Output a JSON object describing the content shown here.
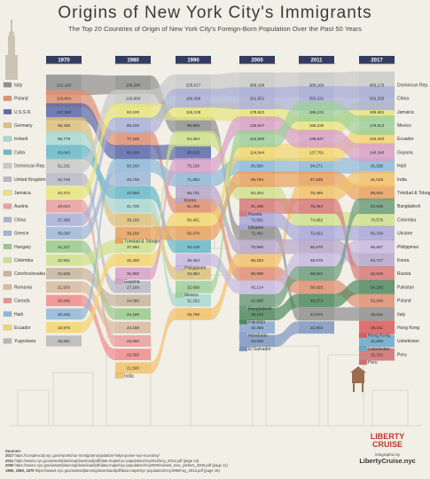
{
  "title": "Origins of New York City's Immigrants",
  "subtitle": "The Top 20 Countries of Origin of New York City's Foreign-Born Population Over the Past 50 Years",
  "sources": {
    "heading": "Sources:",
    "lines": [
      {
        "year": "2017",
        "text": "https://complexcity.nyc.gov/reports/our-immigrant-population-helps-power-nyc-economy/"
      },
      {
        "year": "2011",
        "text": "https://www1.nyc.gov/assets/planning/download/pdf/data-maps/nyc-population/nny2013/nny_2013.pdf (page 13)"
      },
      {
        "year": "2000",
        "text": "https://www1.nyc.gov/assets/planning/download/pdf/data-maps/nyc-population/nny2000/newest_new_yorkers_2000.pdf (page 11)"
      },
      {
        "year": "1990, 1980, 1970",
        "text": "https://www1.nyc.gov/assets/planning/download/pdf/data-maps/nyc-population/nny1990/nny_2013.pdf (page 16)"
      }
    ]
  },
  "brand": {
    "logo_line1": "LIBERTY",
    "logo_line2": "CRUISE",
    "by": "infographic by",
    "url": "LibertyCruise.nyc"
  },
  "chart_data": {
    "type": "bump-flow",
    "title": "Origins of New York City's Immigrants",
    "years": [
      "1970",
      "1980",
      "1990",
      "2000",
      "2011",
      "2017"
    ],
    "series": [
      {
        "name": "Italy",
        "color": "#8f8f8f",
        "values": [
          212160,
          156280,
          98868,
          72481,
          44876,
          49531
        ]
      },
      {
        "name": "Poland",
        "color": "#df8f73",
        "values": [
          119604,
          77160,
          61265,
          65999,
          50925,
          52646
        ]
      },
      {
        "name": "U.S.S.R.",
        "color": "#5b69a8",
        "values": [
          117363,
          60160,
          80815,
          null,
          null,
          null
        ]
      },
      {
        "name": "Germany",
        "color": "#dcc17d",
        "values": [
          98336,
          39160,
          33384,
          null,
          null,
          null
        ]
      },
      {
        "name": "Ireland",
        "color": "#a9d8d2",
        "values": [
          68778,
          41720,
          31252,
          null,
          null,
          null
        ]
      },
      {
        "name": "Cuba",
        "color": "#67b8c8",
        "values": [
          63043,
          42560,
          40419,
          null,
          null,
          null
        ]
      },
      {
        "name": "Dominican Rep.",
        "color": "#c9c9c9",
        "values": [
          51231,
          120600,
          225017,
          369186,
          380160,
          453176
        ]
      },
      {
        "name": "United Kingdom",
        "color": "#b8b8c8",
        "values": [
          42748,
          27160,
          null,
          null,
          null,
          null
        ]
      },
      {
        "name": "Austria",
        "color": "#ea9f9f",
        "values": [
          40024,
          22560,
          null,
          null,
          null,
          null
        ]
      },
      {
        "name": "Jamaica",
        "color": "#e7e57a",
        "values": [
          40372,
          93100,
          116128,
          178922,
          169235,
          185681
        ]
      },
      {
        "name": "China",
        "color": "#aab0d8",
        "values": [
          37368,
          85100,
          160399,
          261551,
          350231,
          332255
        ]
      },
      {
        "name": "Greece",
        "color": "#9fb7d8",
        "values": [
          35000,
          48700,
          null,
          null,
          null,
          null
        ]
      },
      {
        "name": "Hungary",
        "color": "#9ac98c",
        "values": [
          31317,
          24160,
          null,
          null,
          null,
          null
        ]
      },
      {
        "name": "Colombia",
        "color": "#cfe08c",
        "values": [
          22581,
          37560,
          84454,
          84404,
          74692,
          70576
        ]
      },
      {
        "name": "Czechoslovakia",
        "color": "#c7b59c",
        "values": [
          21525,
          24360,
          null,
          null,
          null,
          null
        ]
      },
      {
        "name": "Romania",
        "color": "#d8b9a0",
        "values": [
          21503,
          24160,
          null,
          null,
          null,
          null
        ]
      },
      {
        "name": "Canada",
        "color": "#f08c8c",
        "values": [
          20846,
          22360,
          null,
          null,
          null,
          null
        ]
      },
      {
        "name": "Haiti",
        "color": "#8fb8d8",
        "values": [
          20245,
          50160,
          71892,
          95580,
          94171,
          91595
        ]
      },
      {
        "name": "Yugoslavia",
        "color": "#b7b7b7",
        "values": [
          16691,
          null,
          null,
          null,
          null,
          null
        ]
      },
      {
        "name": "Ecuador",
        "color": "#f3d56c",
        "values": [
          16975,
          32400,
          60451,
          114944,
          137791,
          140340
        ]
      },
      {
        "name": "Trinidad & Tobago",
        "color": "#e9a15f",
        "values": [
          null,
          39160,
          56478,
          88794,
          87635,
          89502
        ]
      },
      {
        "name": "Guyana",
        "color": "#d8a0c8",
        "values": [
          null,
          31960,
          76150,
          130647,
          139947,
          140340
        ]
      },
      {
        "name": "India",
        "color": "#f2c16a",
        "values": [
          null,
          21500,
          28790,
          68263,
          76465,
          91048
        ]
      },
      {
        "name": "Korea",
        "color": "#b7a7c9",
        "values": [
          null,
          null,
          65731,
          70990,
          65678,
          64747
        ]
      },
      {
        "name": "Philippines",
        "color": "#c7b9e0",
        "values": [
          null,
          null,
          36463,
          45124,
          65678,
          65657
        ]
      },
      {
        "name": "Mexico",
        "color": "#9fd09a",
        "values": [
          null,
          null,
          32689,
          122550,
          186231,
          179613
        ]
      },
      {
        "name": "Russia",
        "color": "#d87979",
        "values": [
          null,
          null,
          null,
          81408,
          76264,
          62625
        ]
      },
      {
        "name": "Ukraine",
        "color": "#aaa6d8",
        "values": [
          null,
          null,
          null,
          72581,
          72622,
          66339
        ]
      },
      {
        "name": "Bangladesh",
        "color": "#6d9c7c",
        "values": [
          null,
          null,
          null,
          42865,
          58820,
          83949
        ]
      },
      {
        "name": "Pakistan",
        "color": "#4f8a60",
        "values": [
          null,
          null,
          null,
          39165,
          48273,
          54285
        ]
      },
      {
        "name": "Honduras",
        "color": "#8aa6d0",
        "values": [
          null,
          null,
          null,
          32358,
          null,
          null
        ]
      },
      {
        "name": "El Salvador",
        "color": "#7c95c0",
        "values": [
          null,
          null,
          null,
          29805,
          32903,
          null
        ]
      },
      {
        "name": "Hong Kong",
        "color": "#d95b5b",
        "values": [
          null,
          null,
          null,
          null,
          null,
          48311
        ]
      },
      {
        "name": "Peru",
        "color": "#cf6f6f",
        "values": [
          null,
          null,
          null,
          null,
          null,
          32322
        ]
      },
      {
        "name": "Uzbekistan",
        "color": "#6aa7c9",
        "values": [
          null,
          null,
          null,
          null,
          null,
          32806
        ]
      }
    ],
    "y_axis": "rank order (largest on top)"
  },
  "colors": {
    "background": "#f1efe6",
    "year_tab": "#2f3e63",
    "title": "#3a3a3a",
    "accent_red": "#c0392b"
  }
}
